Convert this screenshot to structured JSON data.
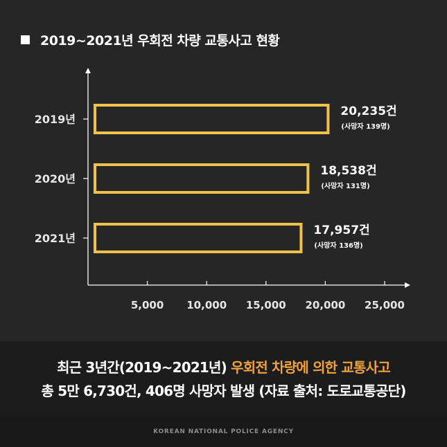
{
  "title": "2019~2021년 우회전 차량 교통사고 현황",
  "chart_data": {
    "type": "bar",
    "orientation": "horizontal",
    "categories": [
      "2019년",
      "2020년",
      "2021년"
    ],
    "values": [
      20235,
      18538,
      17957
    ],
    "value_labels": [
      "20,235건",
      "18,538건",
      "17,957건"
    ],
    "sub_labels": [
      "(사망자 139명)",
      "(사망자 131명)",
      "(사망자 136명)"
    ],
    "xticks": [
      5000,
      10000,
      15000,
      20000,
      25000
    ],
    "xtick_labels": [
      "5,000",
      "10,000",
      "15,000",
      "20,000",
      "25,000"
    ],
    "xlim": [
      0,
      27000
    ],
    "bar_color": "#f0c24a",
    "grid": false
  },
  "summary": {
    "line1_prefix": "최근 3년간(2019~2021년) ",
    "line1_highlight": "우회전 차량에 의한 교통사고",
    "line2": "총 5만 6,730건, 406명 사망자 발생 (자료 출처: 도로교통공단)"
  },
  "footer": "KOREAN NATIONAL POLICE AGENCY",
  "colors": {
    "background": "#262626",
    "bar_outline": "#f0c24a",
    "highlight": "#f3a23a",
    "axis": "#ffffff",
    "label": "#e6e6e6"
  }
}
